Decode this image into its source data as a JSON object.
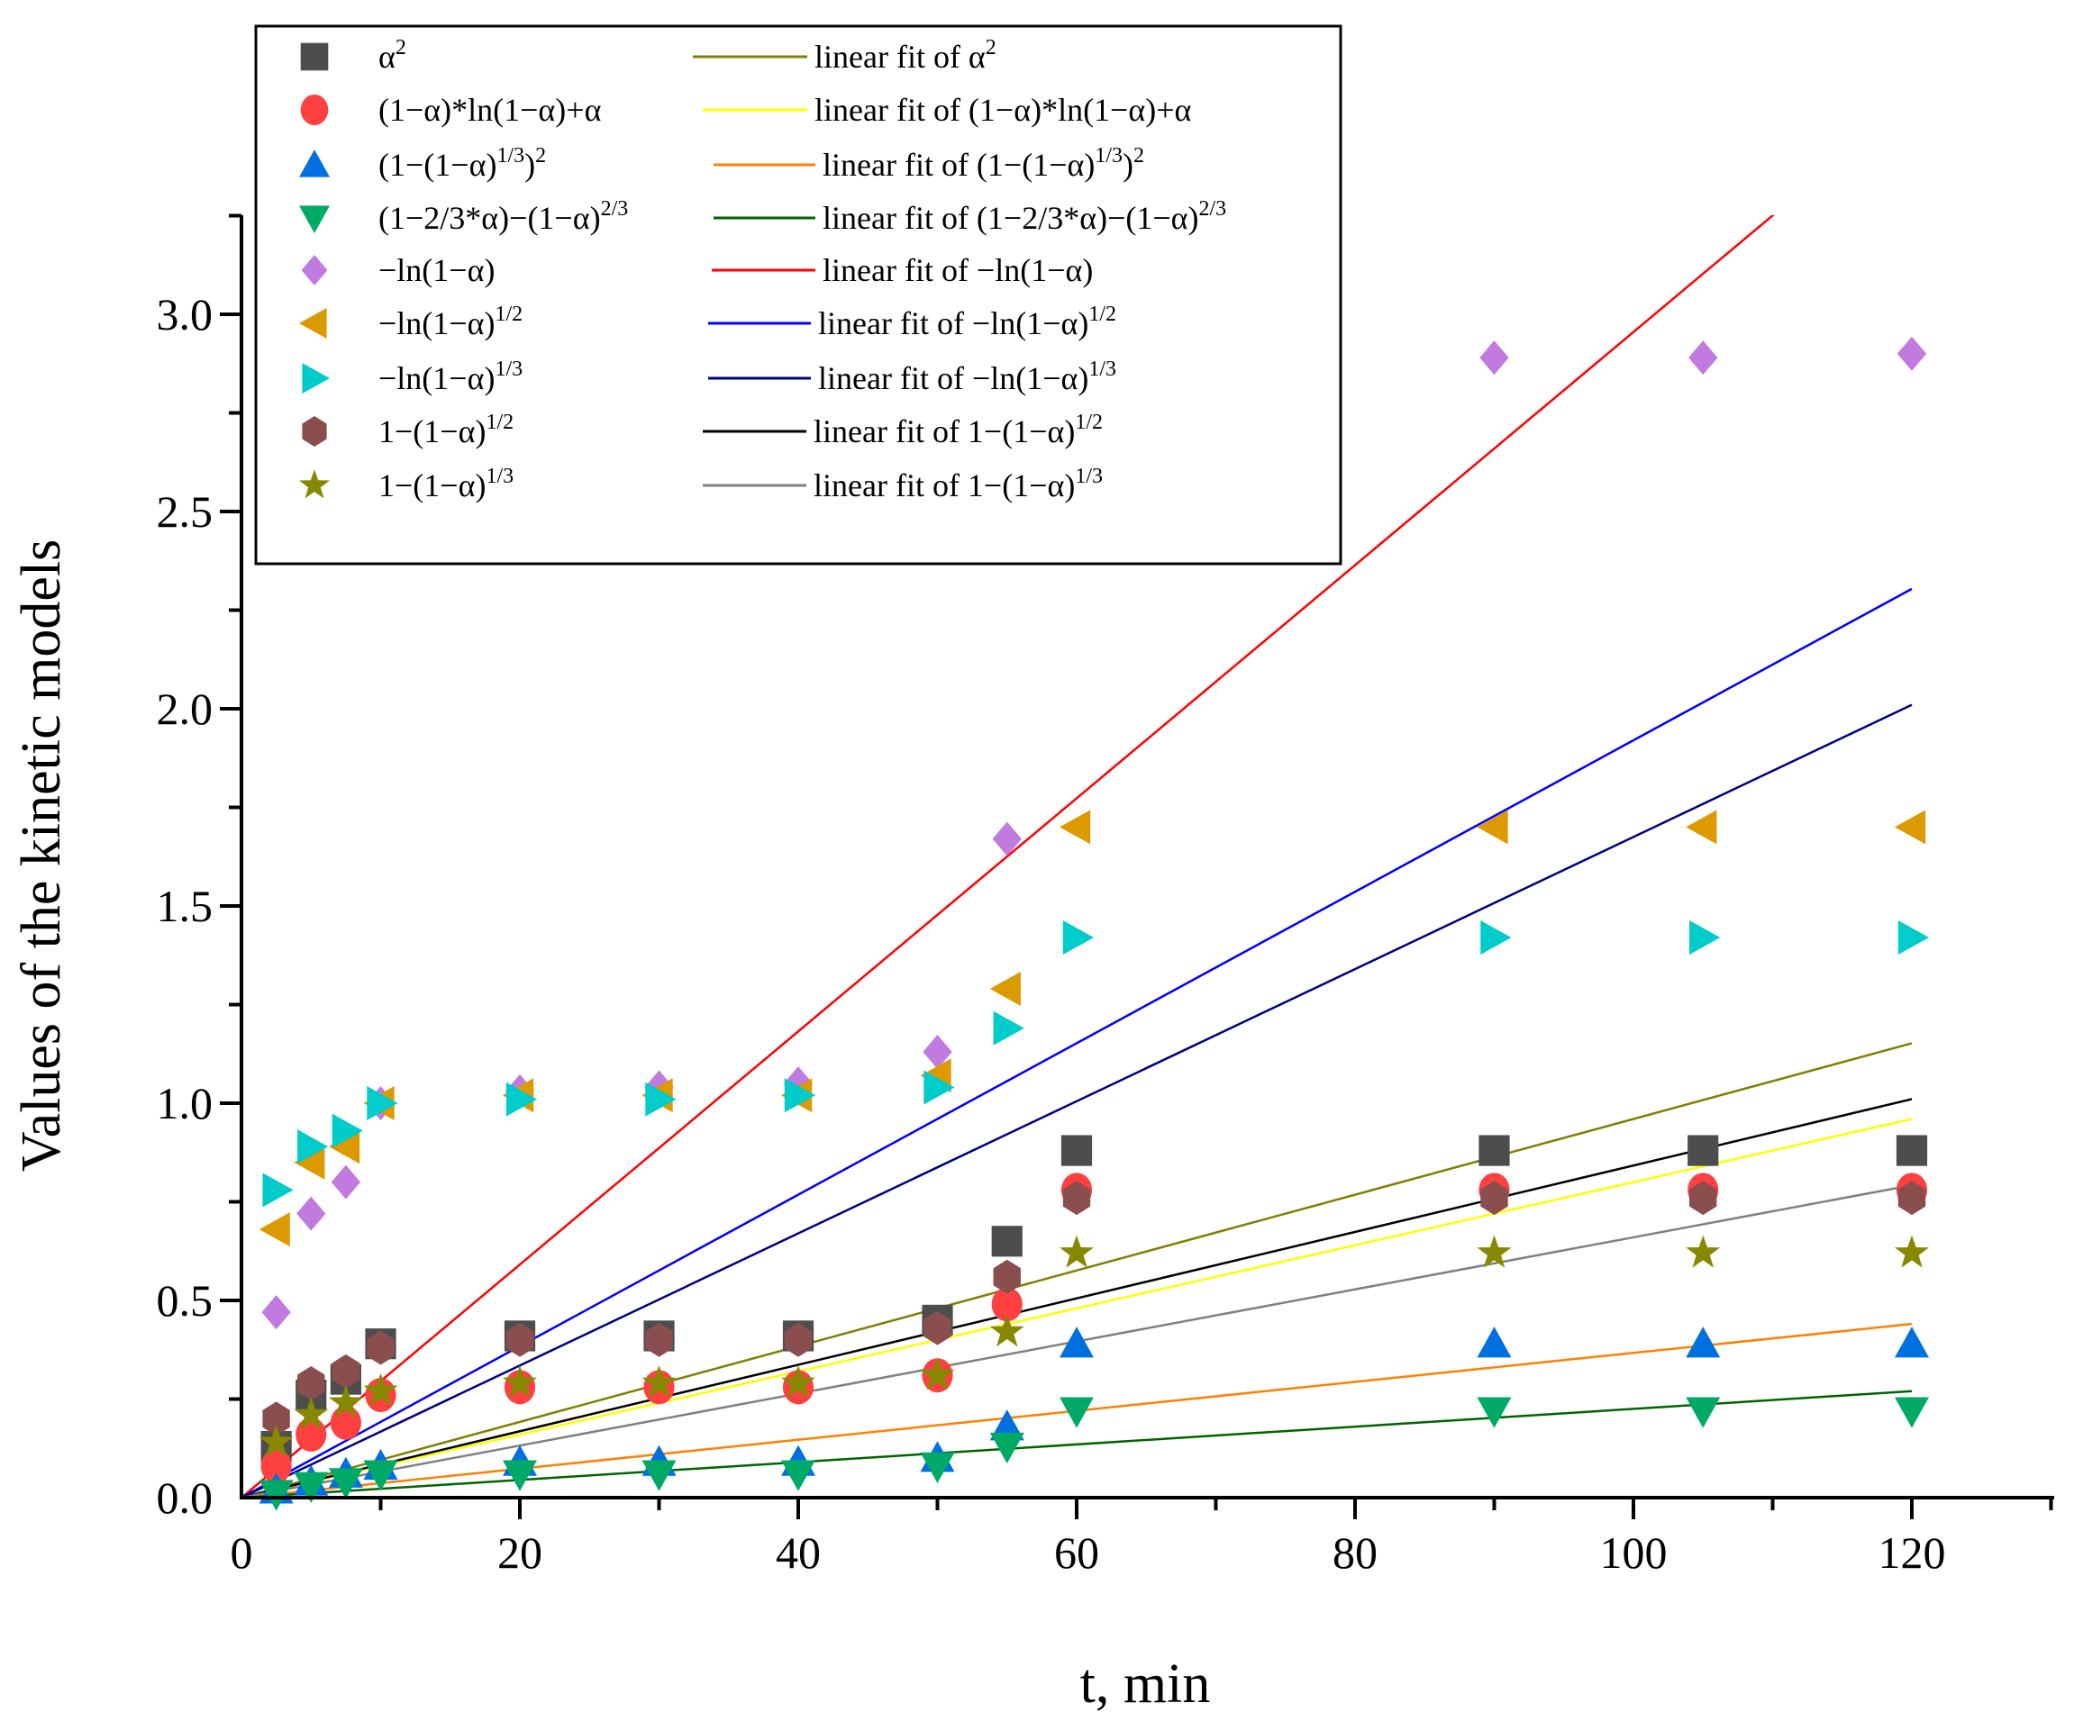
{
  "chart_data": {
    "type": "scatter",
    "title": "",
    "xlabel": "t, min",
    "ylabel": "Values of the kinetic models",
    "xlim": [
      0,
      130
    ],
    "ylim": [
      0,
      3.25
    ],
    "xticks": [
      0,
      20,
      40,
      60,
      80,
      100,
      120
    ],
    "xtick_labels": [
      "0",
      "20",
      "40",
      "60",
      "80",
      "100",
      "120"
    ],
    "yticks": [
      0,
      0.5,
      1.0,
      1.5,
      2.0,
      2.5,
      3.0
    ],
    "ytick_labels": [
      "0.0",
      "0.5",
      "1.0",
      "1.5",
      "2.0",
      "2.5",
      "3.0"
    ],
    "grid": false,
    "legend_position": "top-left",
    "x": [
      2.5,
      5,
      7.5,
      10,
      20,
      30,
      40,
      50,
      55,
      60,
      90,
      105,
      120
    ],
    "series": [
      {
        "name": "α^2",
        "label": [
          {
            "t": "α"
          },
          {
            "sup": "2"
          }
        ],
        "marker": "square",
        "color": "#4d4d4d",
        "values": [
          0.13,
          0.26,
          0.3,
          0.39,
          0.41,
          0.41,
          0.41,
          0.45,
          0.65,
          0.88,
          0.88,
          0.88,
          0.88
        ],
        "fit": {
          "name": "linear fit of α^2",
          "label": [
            {
              "t": "linear fit of α"
            },
            {
              "sup": "2"
            }
          ],
          "color": "#808000",
          "slope": 0.0096,
          "intercept": 0
        }
      },
      {
        "name": "(1−α)*ln(1−α)+α",
        "label": [
          {
            "t": "(1−α)*ln(1−α)+α"
          }
        ],
        "marker": "circle",
        "color": "#ff4040",
        "values": [
          0.08,
          0.16,
          0.19,
          0.26,
          0.28,
          0.28,
          0.28,
          0.31,
          0.49,
          0.78,
          0.78,
          0.78,
          0.78
        ],
        "fit": {
          "name": "linear fit of (1−α)*ln(1−α)+α",
          "label": [
            {
              "t": "linear fit of (1−α)*ln(1−α)+α"
            }
          ],
          "color": "#ffff00",
          "slope": 0.008,
          "intercept": 0
        }
      },
      {
        "name": "(1−(1−α)^1/3)^2",
        "label": [
          {
            "t": "(1−(1−α)"
          },
          {
            "sup": "1/3"
          },
          {
            "t": ")"
          },
          {
            "sup": "2"
          }
        ],
        "marker": "triangle-up",
        "color": "#0070e0",
        "values": [
          0.02,
          0.04,
          0.06,
          0.08,
          0.09,
          0.09,
          0.09,
          0.1,
          0.18,
          0.39,
          0.39,
          0.39,
          0.39
        ],
        "fit": {
          "name": "linear fit of (1−(1−α)^1/3)^2",
          "label": [
            {
              "t": "linear fit of (1−(1−α)"
            },
            {
              "sup": "1/3"
            },
            {
              "t": ")"
            },
            {
              "sup": "2"
            }
          ],
          "color": "#ff8000",
          "slope": 0.00367,
          "intercept": 0
        }
      },
      {
        "name": "(1−2/3*α)−(1−α)^2/3",
        "label": [
          {
            "t": "(1−2/3*α)−(1−α)"
          },
          {
            "sup": "2/3"
          }
        ],
        "marker": "triangle-down",
        "color": "#00aa66",
        "values": [
          0.01,
          0.03,
          0.04,
          0.06,
          0.06,
          0.06,
          0.06,
          0.08,
          0.13,
          0.22,
          0.22,
          0.22,
          0.22
        ],
        "fit": {
          "name": "linear fit of (1−2/3*α)−(1−α)^2/3",
          "label": [
            {
              "t": "linear fit of (1−2/3*α)−(1−α)"
            },
            {
              "sup": "2/3"
            }
          ],
          "color": "#006400",
          "slope": 0.00225,
          "intercept": 0
        }
      },
      {
        "name": "−ln(1−α)",
        "label": [
          {
            "t": "−ln(1−α)"
          }
        ],
        "marker": "diamond",
        "color": "#c07ae0",
        "values": [
          0.47,
          0.72,
          0.8,
          1.0,
          1.03,
          1.04,
          1.05,
          1.13,
          1.67,
          null,
          2.89,
          2.89,
          2.9
        ],
        "fit": {
          "name": "linear fit of −ln(1−α)",
          "label": [
            {
              "t": "linear fit of −ln(1−α)"
            }
          ],
          "color": "#ff0000",
          "slope": 0.02955,
          "intercept": 0
        }
      },
      {
        "name": "−ln(1−α)^1/2",
        "label": [
          {
            "t": "−ln(1−α)"
          },
          {
            "sup": "1/2"
          }
        ],
        "marker": "triangle-left",
        "color": "#dd9900",
        "values": [
          0.68,
          0.85,
          0.89,
          1.0,
          1.02,
          1.02,
          1.02,
          1.07,
          1.29,
          1.7,
          1.7,
          1.7,
          1.7
        ],
        "fit": {
          "name": "linear fit of −ln(1−α)^1/2",
          "label": [
            {
              "t": "linear fit of −ln(1−α)"
            },
            {
              "sup": "1/2"
            }
          ],
          "color": "#0000ff",
          "slope": 0.0192,
          "intercept": 0
        }
      },
      {
        "name": "−ln(1−α)^1/3",
        "label": [
          {
            "t": "−ln(1−α)"
          },
          {
            "sup": "1/3"
          }
        ],
        "marker": "triangle-right",
        "color": "#00cccc",
        "values": [
          0.78,
          0.89,
          0.93,
          1.0,
          1.01,
          1.01,
          1.02,
          1.04,
          1.19,
          1.42,
          1.42,
          1.42,
          1.42
        ],
        "fit": {
          "name": "linear fit of −ln(1−α)^1/3",
          "label": [
            {
              "t": "linear fit of −ln(1−α)"
            },
            {
              "sup": "1/3"
            }
          ],
          "color": "#000080",
          "slope": 0.01675,
          "intercept": 0
        }
      },
      {
        "name": "1−(1−α)^1/2",
        "label": [
          {
            "t": "1−(1−α)"
          },
          {
            "sup": "1/2"
          }
        ],
        "marker": "hexagon",
        "color": "#8b4e4e",
        "values": [
          0.2,
          0.29,
          0.32,
          0.38,
          0.4,
          0.4,
          0.4,
          0.43,
          0.56,
          0.76,
          0.76,
          0.76,
          0.76
        ],
        "fit": {
          "name": "linear fit of 1−(1−α)^1/2",
          "label": [
            {
              "t": "linear fit of 1−(1−α)"
            },
            {
              "sup": "1/2"
            }
          ],
          "color": "#000000",
          "slope": 0.00842,
          "intercept": 0
        }
      },
      {
        "name": "1−(1−α)^1/3",
        "label": [
          {
            "t": "1−(1−α)"
          },
          {
            "sup": "1/3"
          }
        ],
        "marker": "star",
        "color": "#888800",
        "values": [
          0.14,
          0.21,
          0.24,
          0.27,
          0.29,
          0.29,
          0.29,
          0.31,
          0.42,
          0.62,
          0.62,
          0.62,
          0.62
        ],
        "fit": {
          "name": "linear fit of 1−(1−α)^1/3",
          "label": [
            {
              "t": "linear fit of 1−(1−α)"
            },
            {
              "sup": "1/3"
            }
          ],
          "color": "#808080",
          "slope": 0.0066,
          "intercept": 0
        }
      }
    ]
  }
}
